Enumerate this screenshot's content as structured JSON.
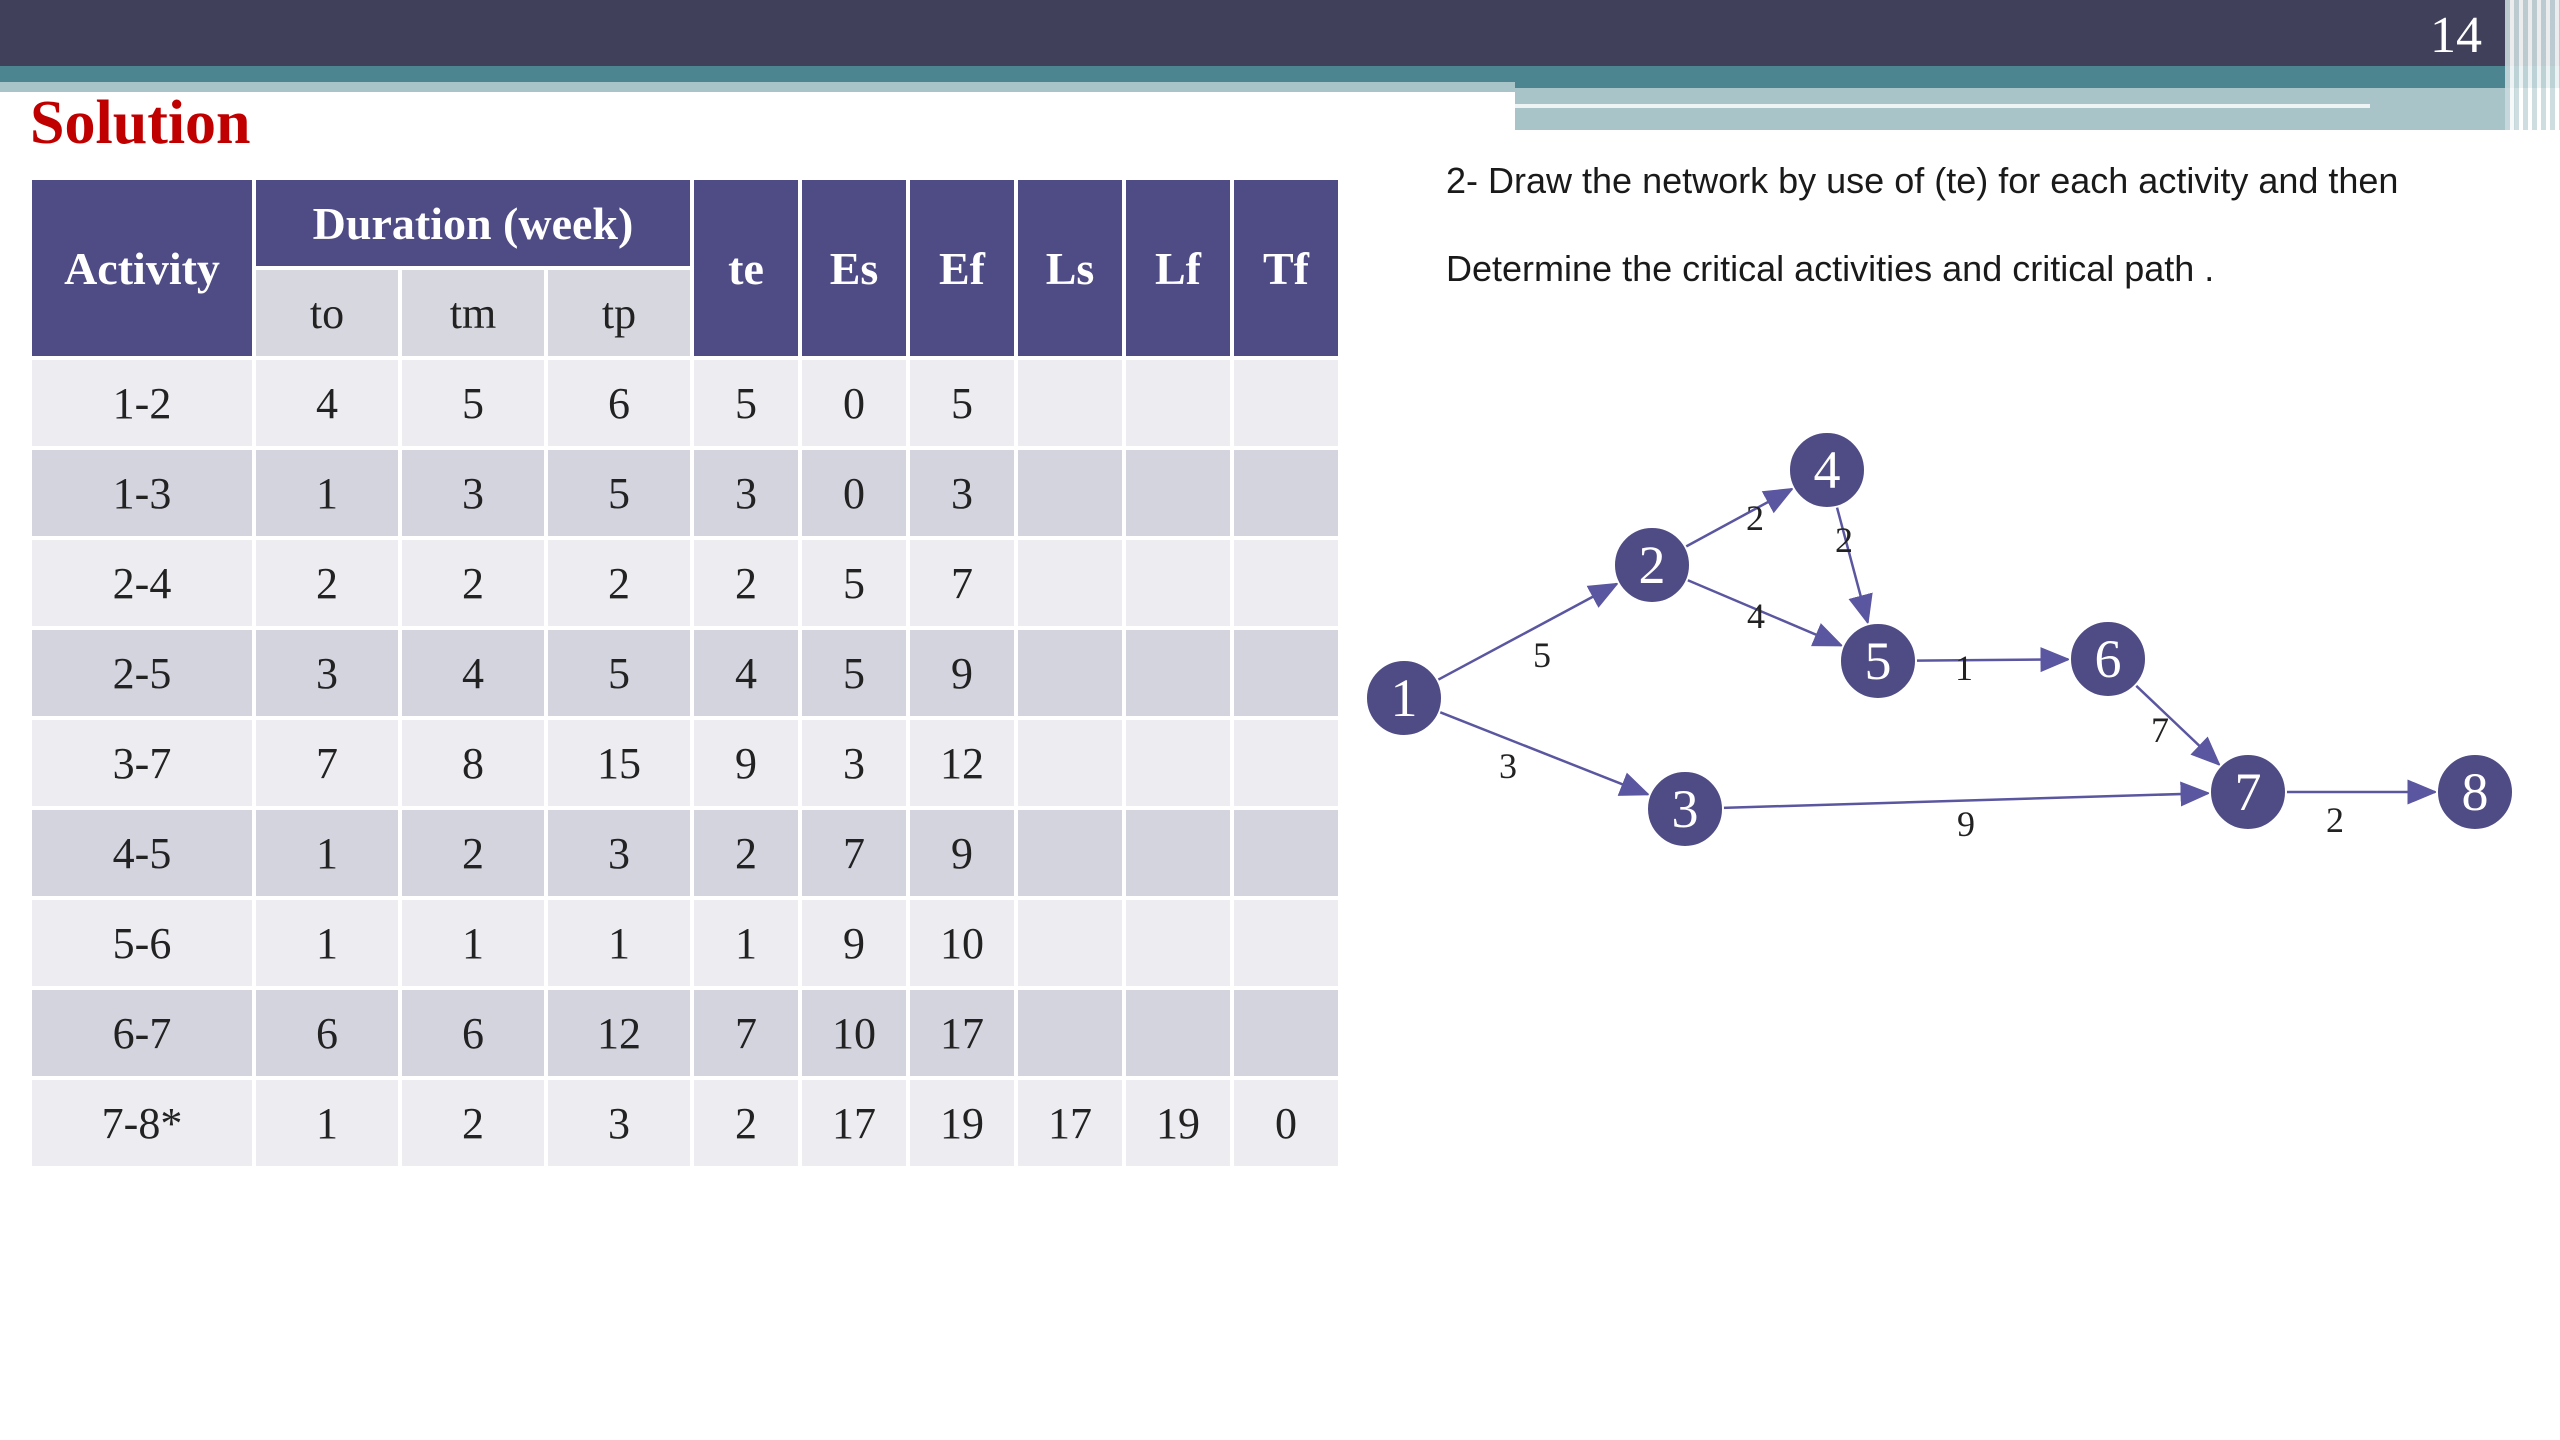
{
  "slide": {
    "page_number": "14",
    "title": "Solution"
  },
  "table": {
    "header_activity": "Activity",
    "header_duration": "Duration (week)",
    "sub_headers": [
      "to",
      "tm",
      "tp"
    ],
    "other_headers": [
      "te",
      "Es",
      "Ef",
      "Ls",
      "Lf",
      "Tf"
    ],
    "rows": [
      [
        "1-2",
        "4",
        "5",
        "6",
        "5",
        "0",
        "5",
        "",
        "",
        ""
      ],
      [
        "1-3",
        "1",
        "3",
        "5",
        "3",
        "0",
        "3",
        "",
        "",
        ""
      ],
      [
        "2-4",
        "2",
        "2",
        "2",
        "2",
        "5",
        "7",
        "",
        "",
        ""
      ],
      [
        "2-5",
        "3",
        "4",
        "5",
        "4",
        "5",
        "9",
        "",
        "",
        ""
      ],
      [
        "3-7",
        "7",
        "8",
        "15",
        "9",
        "3",
        "12",
        "",
        "",
        ""
      ],
      [
        "4-5",
        "1",
        "2",
        "3",
        "2",
        "7",
        "9",
        "",
        "",
        ""
      ],
      [
        "5-6",
        "1",
        "1",
        "1",
        "1",
        "9",
        "10",
        "",
        "",
        ""
      ],
      [
        "6-7",
        "6",
        "6",
        "12",
        "7",
        "10",
        "17",
        "",
        "",
        ""
      ],
      [
        "7-8*",
        "1",
        "2",
        "3",
        "2",
        "17",
        "19",
        "17",
        "19",
        "0"
      ]
    ]
  },
  "prompt": {
    "line1": "2- Draw the network by use of (te) for each activity and then",
    "line2": "Determine the critical activities and critical path ."
  },
  "network": {
    "nodes": [
      "1",
      "2",
      "3",
      "4",
      "5",
      "6",
      "7",
      "8"
    ],
    "edges": [
      {
        "from": "1",
        "to": "2",
        "label": "5"
      },
      {
        "from": "1",
        "to": "3",
        "label": "3"
      },
      {
        "from": "2",
        "to": "4",
        "label": "2"
      },
      {
        "from": "2",
        "to": "5",
        "label": "4"
      },
      {
        "from": "4",
        "to": "5",
        "label": "2"
      },
      {
        "from": "5",
        "to": "6",
        "label": "1"
      },
      {
        "from": "6",
        "to": "7",
        "label": "7"
      },
      {
        "from": "3",
        "to": "7",
        "label": "9"
      },
      {
        "from": "7",
        "to": "8",
        "label": "2"
      }
    ]
  },
  "colors": {
    "header_fill": "#4f4b85",
    "title_red": "#c00000",
    "node_fill": "#4f4b85"
  }
}
